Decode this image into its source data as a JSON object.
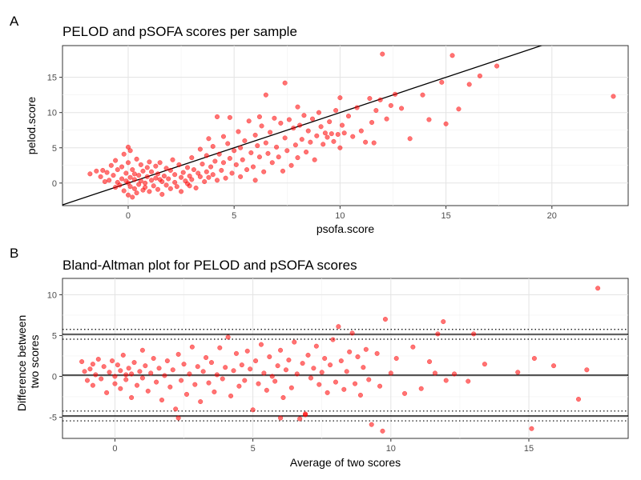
{
  "figure": {
    "panel_a_tag": "A",
    "panel_b_tag": "B",
    "point_color": "#ff0000",
    "line_color": "#000000"
  },
  "chart_data": [
    {
      "type": "scatter",
      "title": "PELOD and pSOFA scores per sample",
      "xlabel": "psofa.score",
      "ylabel": "pelod.score",
      "xlim": [
        -3.1,
        23.6
      ],
      "ylim": [
        -3.2,
        19.5
      ],
      "x_ticks": [
        0,
        5,
        10,
        15,
        20
      ],
      "y_ticks": [
        0,
        5,
        10,
        15
      ],
      "grid": true,
      "reference_line": {
        "intercept": 0,
        "slope": 1
      },
      "points": [
        [
          -1.8,
          1.3
        ],
        [
          -1.5,
          1.7
        ],
        [
          -1.3,
          0.9
        ],
        [
          -1.2,
          1.8
        ],
        [
          -1.1,
          0.2
        ],
        [
          -1.0,
          1.5
        ],
        [
          -0.9,
          0.4
        ],
        [
          -0.8,
          2.5
        ],
        [
          -0.7,
          1.1
        ],
        [
          -0.6,
          3.2
        ],
        [
          -0.6,
          -0.6
        ],
        [
          -0.5,
          0.1
        ],
        [
          -0.5,
          1.9
        ],
        [
          -0.4,
          -0.3
        ],
        [
          -0.3,
          0.6
        ],
        [
          -0.3,
          2.3
        ],
        [
          -0.2,
          4.1
        ],
        [
          -0.2,
          -1.1
        ],
        [
          -0.1,
          0.3
        ],
        [
          -0.1,
          1.4
        ],
        [
          0.0,
          -1.7
        ],
        [
          0.0,
          0.0
        ],
        [
          0.0,
          2.9
        ],
        [
          0.0,
          5.1
        ],
        [
          0.1,
          -0.5
        ],
        [
          0.1,
          0.8
        ],
        [
          0.1,
          4.6
        ],
        [
          0.2,
          -2.0
        ],
        [
          0.2,
          1.9
        ],
        [
          0.3,
          -0.8
        ],
        [
          0.3,
          0.5
        ],
        [
          0.4,
          3.4
        ],
        [
          0.4,
          -1.4
        ],
        [
          0.5,
          1.1
        ],
        [
          0.5,
          -0.2
        ],
        [
          0.6,
          2.6
        ],
        [
          0.6,
          0.3
        ],
        [
          0.7,
          -1.0
        ],
        [
          0.7,
          1.7
        ],
        [
          0.8,
          0.0
        ],
        [
          0.8,
          -0.6
        ],
        [
          0.9,
          2.2
        ],
        [
          0.9,
          0.9
        ],
        [
          1.0,
          -1.2
        ],
        [
          1.0,
          3.0
        ],
        [
          1.1,
          0.4
        ],
        [
          1.1,
          1.6
        ],
        [
          1.2,
          -0.4
        ],
        [
          1.3,
          2.4
        ],
        [
          1.3,
          0.7
        ],
        [
          1.4,
          -0.9
        ],
        [
          1.4,
          1.3
        ],
        [
          1.5,
          2.9
        ],
        [
          1.6,
          0.2
        ],
        [
          1.6,
          -1.6
        ],
        [
          1.7,
          1.0
        ],
        [
          1.8,
          2.1
        ],
        [
          1.8,
          -0.3
        ],
        [
          1.9,
          0.6
        ],
        [
          2.0,
          1.8
        ],
        [
          2.0,
          -0.8
        ],
        [
          2.1,
          3.3
        ],
        [
          2.2,
          0.1
        ],
        [
          2.2,
          1.2
        ],
        [
          2.3,
          -0.5
        ],
        [
          2.4,
          2.6
        ],
        [
          2.5,
          0.8
        ],
        [
          2.5,
          -1.2
        ],
        [
          2.6,
          1.5
        ],
        [
          2.7,
          0.3
        ],
        [
          2.8,
          2.2
        ],
        [
          2.8,
          -0.1
        ],
        [
          2.9,
          1.0
        ],
        [
          3.0,
          3.6
        ],
        [
          3.0,
          0.5
        ],
        [
          3.1,
          1.9
        ],
        [
          3.2,
          -0.7
        ],
        [
          3.3,
          1.4
        ],
        [
          3.4,
          4.8
        ],
        [
          3.4,
          0.9
        ],
        [
          3.5,
          2.7
        ],
        [
          3.6,
          0.2
        ],
        [
          3.7,
          3.9
        ],
        [
          3.7,
          1.6
        ],
        [
          3.8,
          6.3
        ],
        [
          3.8,
          0.8
        ],
        [
          3.9,
          2.3
        ],
        [
          4.0,
          5.2
        ],
        [
          4.0,
          1.2
        ],
        [
          4.1,
          3.1
        ],
        [
          4.2,
          9.4
        ],
        [
          4.2,
          0.4
        ],
        [
          4.3,
          4.1
        ],
        [
          4.4,
          1.8
        ],
        [
          4.5,
          6.6
        ],
        [
          4.5,
          2.9
        ],
        [
          4.6,
          0.7
        ],
        [
          4.7,
          5.6
        ],
        [
          4.8,
          3.5
        ],
        [
          4.8,
          9.3
        ],
        [
          4.9,
          1.4
        ],
        [
          5.0,
          4.6
        ],
        [
          5.1,
          2.6
        ],
        [
          5.2,
          7.3
        ],
        [
          5.3,
          0.9
        ],
        [
          5.3,
          5.0
        ],
        [
          5.4,
          3.3
        ],
        [
          5.5,
          6.0
        ],
        [
          5.6,
          1.9
        ],
        [
          5.7,
          8.8
        ],
        [
          5.8,
          4.3
        ],
        [
          5.9,
          2.3
        ],
        [
          6.0,
          6.8
        ],
        [
          6.0,
          0.4
        ],
        [
          6.1,
          5.3
        ],
        [
          6.2,
          3.7
        ],
        [
          6.3,
          8.1
        ],
        [
          6.4,
          1.6
        ],
        [
          6.5,
          12.5
        ],
        [
          6.5,
          5.7
        ],
        [
          6.6,
          4.2
        ],
        [
          6.7,
          7.2
        ],
        [
          6.8,
          2.9
        ],
        [
          6.9,
          9.2
        ],
        [
          7.0,
          5.1
        ],
        [
          7.1,
          3.7
        ],
        [
          7.2,
          8.5
        ],
        [
          7.3,
          1.7
        ],
        [
          7.4,
          14.2
        ],
        [
          7.4,
          6.4
        ],
        [
          7.5,
          4.6
        ],
        [
          7.6,
          9.0
        ],
        [
          7.7,
          2.5
        ],
        [
          7.8,
          7.8
        ],
        [
          7.9,
          5.4
        ],
        [
          8.0,
          10.8
        ],
        [
          8.0,
          3.6
        ],
        [
          8.1,
          8.2
        ],
        [
          8.2,
          6.2
        ],
        [
          8.3,
          9.6
        ],
        [
          8.4,
          4.4
        ],
        [
          8.5,
          7.4
        ],
        [
          8.6,
          5.8
        ],
        [
          8.7,
          9.1
        ],
        [
          8.8,
          3.3
        ],
        [
          8.9,
          6.7
        ],
        [
          9.0,
          10.0
        ],
        [
          9.1,
          8.0
        ],
        [
          9.2,
          5.5
        ],
        [
          9.3,
          7.1
        ],
        [
          9.4,
          6.5
        ],
        [
          9.5,
          8.7
        ],
        [
          9.6,
          7.0
        ],
        [
          9.7,
          5.9
        ],
        [
          9.8,
          10.3
        ],
        [
          9.9,
          6.9
        ],
        [
          10.0,
          12.1
        ],
        [
          10.0,
          5.0
        ],
        [
          10.1,
          8.2
        ],
        [
          10.2,
          7.1
        ],
        [
          10.4,
          9.5
        ],
        [
          10.6,
          6.6
        ],
        [
          10.8,
          10.7
        ],
        [
          11.0,
          7.4
        ],
        [
          11.2,
          5.8
        ],
        [
          11.4,
          12.0
        ],
        [
          11.5,
          8.6
        ],
        [
          11.7,
          10.3
        ],
        [
          11.9,
          11.8
        ],
        [
          12.0,
          18.3
        ],
        [
          12.2,
          9.1
        ],
        [
          12.4,
          11.0
        ],
        [
          12.6,
          12.6
        ],
        [
          12.9,
          10.6
        ],
        [
          13.3,
          6.3
        ],
        [
          13.9,
          12.5
        ],
        [
          14.2,
          9.0
        ],
        [
          14.8,
          14.3
        ],
        [
          15.0,
          8.4
        ],
        [
          15.3,
          18.1
        ],
        [
          15.6,
          10.5
        ],
        [
          16.1,
          14.0
        ],
        [
          16.6,
          15.2
        ],
        [
          17.4,
          16.6
        ],
        [
          22.9,
          12.3
        ],
        [
          0.3,
          1.3
        ],
        [
          1.5,
          0.5
        ],
        [
          2.9,
          -0.4
        ],
        [
          6.2,
          9.4
        ],
        [
          11.6,
          5.7
        ]
      ]
    },
    {
      "type": "scatter",
      "title": "Bland-Altman plot for PELOD and pSOFA scores",
      "xlabel": "Average of two scores",
      "ylabel": "Difference between two scores",
      "xlim": [
        -1.9,
        18.6
      ],
      "ylim": [
        -7.6,
        12.0
      ],
      "x_ticks": [
        0,
        5,
        10,
        15
      ],
      "y_ticks": [
        -5,
        0,
        5,
        10
      ],
      "grid": true,
      "mean_difference": 0.15,
      "limits_of_agreement": [
        -4.85,
        5.15
      ],
      "confidence_band_lines": [
        -5.45,
        -4.25,
        4.55,
        5.75
      ],
      "points": [
        [
          -1.2,
          1.8
        ],
        [
          -1.1,
          0.6
        ],
        [
          -1.0,
          -0.5
        ],
        [
          -0.9,
          0.9
        ],
        [
          -0.8,
          1.5
        ],
        [
          -0.8,
          -1.1
        ],
        [
          -0.7,
          0.2
        ],
        [
          -0.6,
          2.1
        ],
        [
          -0.5,
          -0.3
        ],
        [
          -0.4,
          1.2
        ],
        [
          -0.3,
          -2.0
        ],
        [
          -0.2,
          0.5
        ],
        [
          -0.1,
          1.9
        ],
        [
          0.0,
          -0.9
        ],
        [
          0.0,
          0.0
        ],
        [
          0.1,
          1.4
        ],
        [
          0.2,
          -1.5
        ],
        [
          0.2,
          0.7
        ],
        [
          0.3,
          2.6
        ],
        [
          0.4,
          -0.4
        ],
        [
          0.5,
          1.0
        ],
        [
          0.6,
          -2.6
        ],
        [
          0.6,
          0.3
        ],
        [
          0.7,
          1.7
        ],
        [
          0.8,
          -1.1
        ],
        [
          0.9,
          0.6
        ],
        [
          1.0,
          3.2
        ],
        [
          1.0,
          -0.2
        ],
        [
          1.1,
          1.3
        ],
        [
          1.2,
          -1.8
        ],
        [
          1.3,
          0.4
        ],
        [
          1.4,
          2.2
        ],
        [
          1.5,
          -0.7
        ],
        [
          1.6,
          1.0
        ],
        [
          1.7,
          -2.9
        ],
        [
          1.8,
          0.1
        ],
        [
          1.9,
          1.9
        ],
        [
          2.0,
          -1.3
        ],
        [
          2.1,
          0.8
        ],
        [
          2.2,
          -4.0
        ],
        [
          2.3,
          2.7
        ],
        [
          2.4,
          -0.5
        ],
        [
          2.5,
          1.5
        ],
        [
          2.6,
          -2.2
        ],
        [
          2.7,
          0.3
        ],
        [
          2.8,
          3.6
        ],
        [
          2.9,
          -1.0
        ],
        [
          3.0,
          1.2
        ],
        [
          3.1,
          -3.1
        ],
        [
          3.2,
          0.6
        ],
        [
          3.3,
          2.3
        ],
        [
          3.4,
          -0.8
        ],
        [
          3.5,
          1.7
        ],
        [
          3.6,
          -1.9
        ],
        [
          3.7,
          0.2
        ],
        [
          3.8,
          3.5
        ],
        [
          3.9,
          -0.3
        ],
        [
          4.0,
          1.1
        ],
        [
          4.1,
          4.8
        ],
        [
          4.2,
          -2.4
        ],
        [
          4.3,
          0.7
        ],
        [
          4.4,
          2.8
        ],
        [
          4.5,
          -1.2
        ],
        [
          4.6,
          1.4
        ],
        [
          4.7,
          -0.5
        ],
        [
          4.8,
          3.1
        ],
        [
          4.9,
          0.9
        ],
        [
          5.0,
          -4.1
        ],
        [
          5.1,
          1.9
        ],
        [
          5.2,
          -0.9
        ],
        [
          5.3,
          3.9
        ],
        [
          5.4,
          0.4
        ],
        [
          5.5,
          -1.7
        ],
        [
          5.6,
          2.4
        ],
        [
          5.7,
          0.0
        ],
        [
          5.8,
          -0.6
        ],
        [
          5.9,
          1.3
        ],
        [
          6.0,
          3.2
        ],
        [
          6.1,
          -2.6
        ],
        [
          6.2,
          0.8
        ],
        [
          6.3,
          2.0
        ],
        [
          6.4,
          -1.4
        ],
        [
          6.5,
          4.2
        ],
        [
          6.6,
          0.3
        ],
        [
          6.7,
          -5.2
        ],
        [
          6.8,
          1.6
        ],
        [
          6.9,
          -4.6
        ],
        [
          7.0,
          2.6
        ],
        [
          7.1,
          -0.2
        ],
        [
          7.2,
          1.0
        ],
        [
          7.3,
          3.7
        ],
        [
          7.4,
          -1.0
        ],
        [
          7.5,
          0.5
        ],
        [
          7.6,
          2.2
        ],
        [
          7.7,
          -2.0
        ],
        [
          7.8,
          1.4
        ],
        [
          7.9,
          4.5
        ],
        [
          8.0,
          -0.7
        ],
        [
          8.1,
          6.1
        ],
        [
          8.2,
          1.9
        ],
        [
          8.3,
          -1.6
        ],
        [
          8.4,
          0.6
        ],
        [
          8.5,
          3.0
        ],
        [
          8.6,
          5.3
        ],
        [
          8.7,
          -0.9
        ],
        [
          8.8,
          2.4
        ],
        [
          8.9,
          -2.3
        ],
        [
          9.0,
          1.1
        ],
        [
          9.1,
          3.3
        ],
        [
          9.2,
          -0.4
        ],
        [
          9.3,
          -5.9
        ],
        [
          9.5,
          2.8
        ],
        [
          9.6,
          -1.2
        ],
        [
          9.8,
          7.0
        ],
        [
          10.0,
          0.4
        ],
        [
          10.2,
          2.2
        ],
        [
          10.5,
          -2.1
        ],
        [
          10.8,
          3.6
        ],
        [
          11.1,
          -1.5
        ],
        [
          11.4,
          1.8
        ],
        [
          11.6,
          0.4
        ],
        [
          11.7,
          5.2
        ],
        [
          11.9,
          6.7
        ],
        [
          12.0,
          -0.5
        ],
        [
          12.3,
          0.3
        ],
        [
          12.8,
          -0.6
        ],
        [
          13.0,
          5.2
        ],
        [
          13.4,
          1.5
        ],
        [
          14.6,
          0.5
        ],
        [
          15.1,
          -6.4
        ],
        [
          15.2,
          2.2
        ],
        [
          15.9,
          1.3
        ],
        [
          16.8,
          -2.8
        ],
        [
          17.1,
          0.8
        ],
        [
          17.5,
          10.8
        ],
        [
          6.9,
          -4.7
        ],
        [
          9.7,
          -6.7
        ],
        [
          2.3,
          -5.1
        ],
        [
          6.0,
          -5.1
        ],
        [
          0.4,
          0.2
        ]
      ]
    }
  ]
}
